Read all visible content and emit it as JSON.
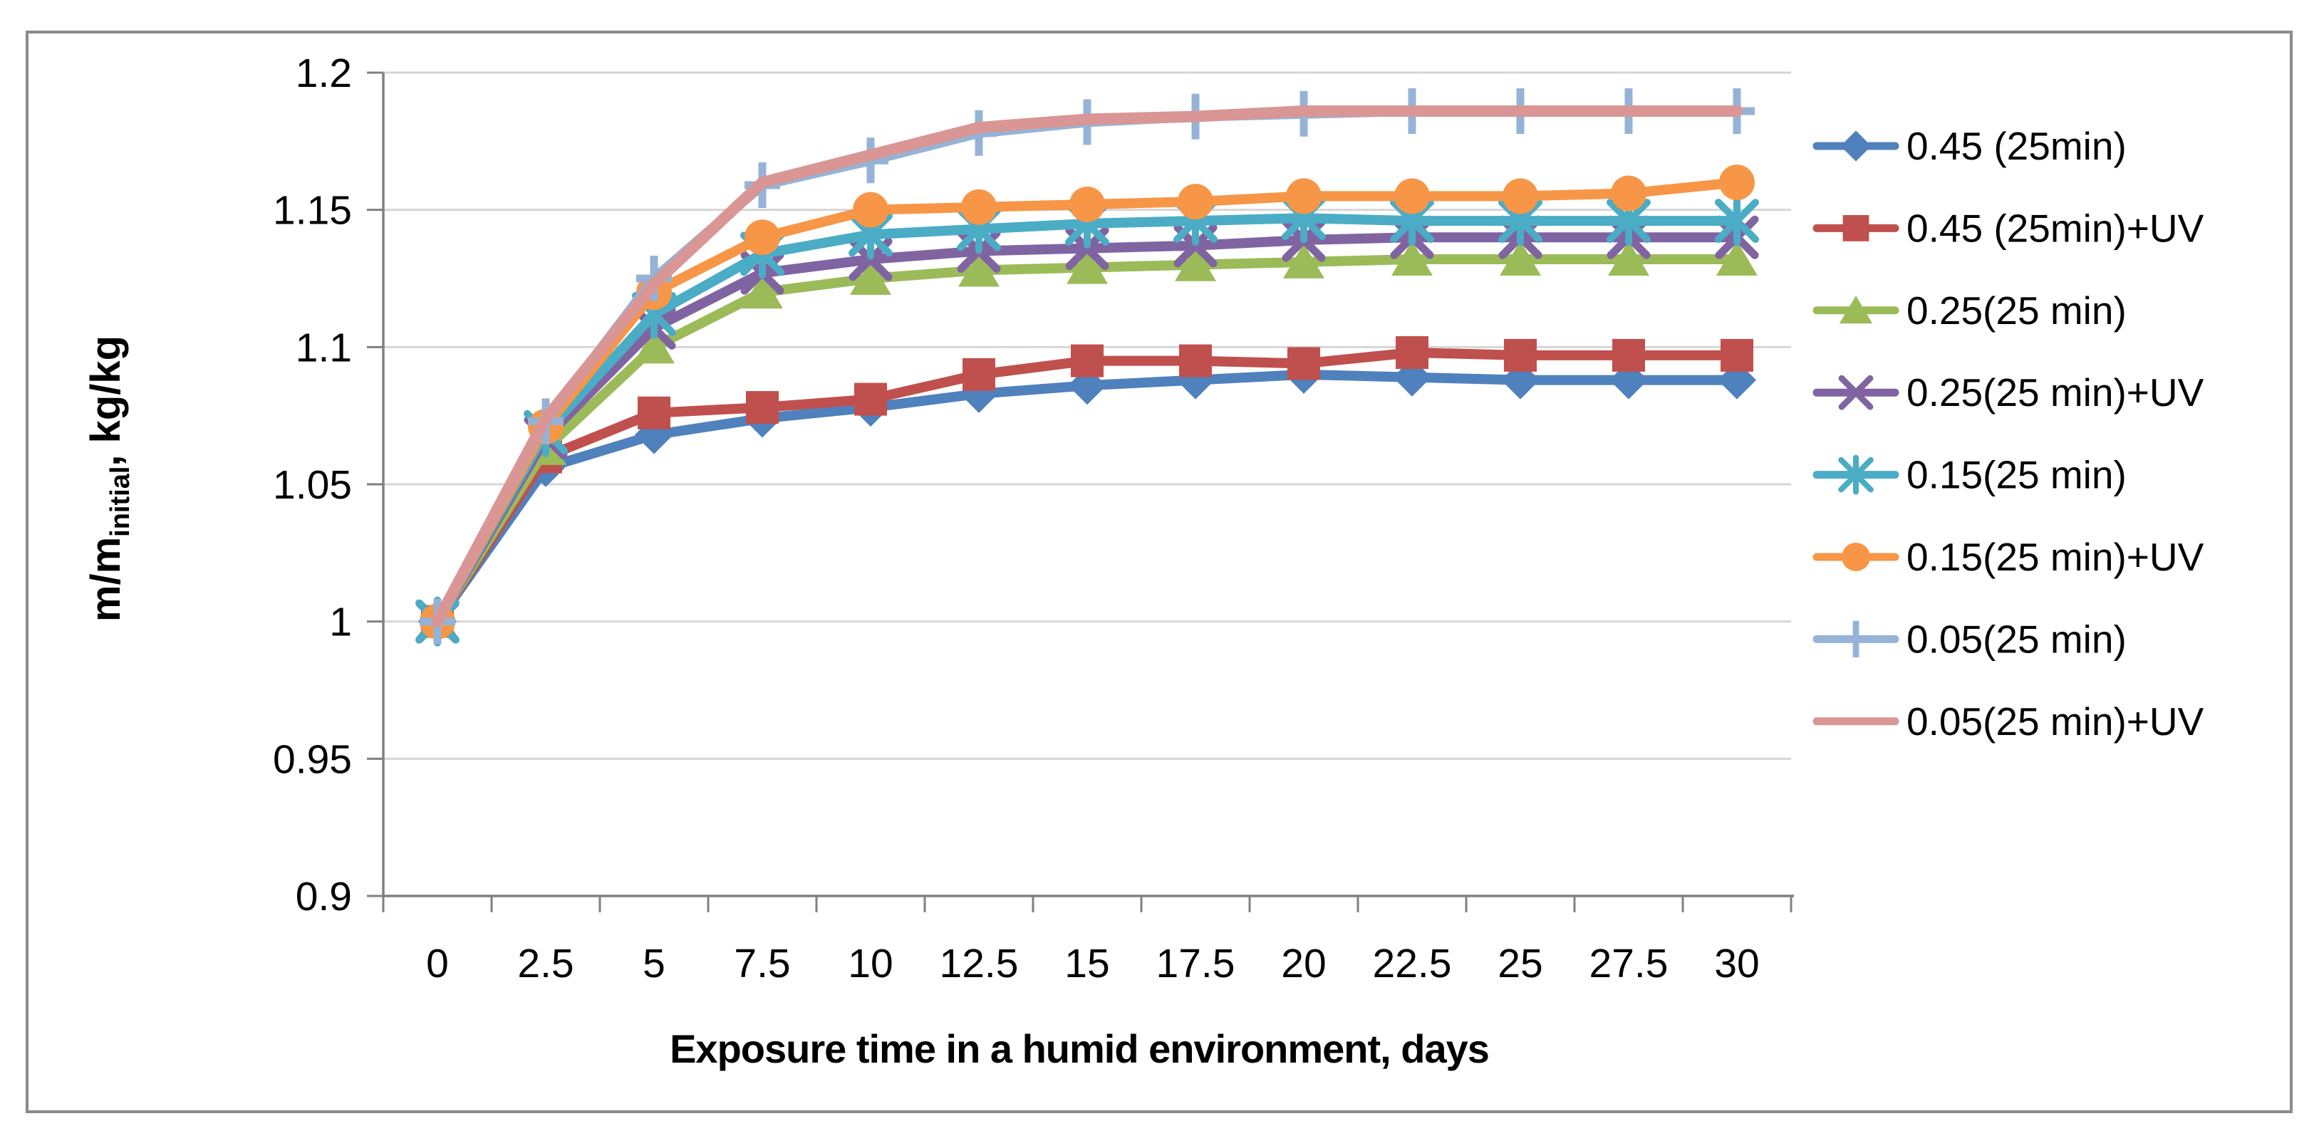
{
  "figure": {
    "background": "#ffffff",
    "border_color": "#8a8a8a"
  },
  "chart_data": {
    "type": "line",
    "title": "",
    "xlabel": "Exposure time in a humid environment, days",
    "ylabel": {
      "main": "m/m",
      "subscript": "initial",
      "suffix": ", kg/kg"
    },
    "x": [
      0,
      2.5,
      5,
      7.5,
      10,
      12.5,
      15,
      17.5,
      20,
      22.5,
      25,
      27.5,
      30
    ],
    "x_tick_labels": [
      "0",
      "2.5",
      "5",
      "7.5",
      "10",
      "12.5",
      "15",
      "17.5",
      "20",
      "22.5",
      "25",
      "27.5",
      "30"
    ],
    "y_ticks": [
      0.9,
      0.95,
      1,
      1.05,
      1.1,
      1.15,
      1.2
    ],
    "y_tick_labels": [
      "0.9",
      "0.95",
      "1",
      "1.05",
      "1.1",
      "1.15",
      "1.2"
    ],
    "xlim": [
      0,
      30
    ],
    "ylim": [
      0.9,
      1.2
    ],
    "grid": "horizontal",
    "legend_position": "right",
    "series": [
      {
        "name": "0.45 (25min)",
        "color": "#4F81BD",
        "marker": "diamond",
        "values": [
          1,
          1.056,
          1.068,
          1.074,
          1.078,
          1.083,
          1.086,
          1.088,
          1.09,
          1.089,
          1.088,
          1.088,
          1.088
        ]
      },
      {
        "name": "0.45 (25min)+UV",
        "color": "#C0504D",
        "marker": "square",
        "values": [
          1,
          1.06,
          1.076,
          1.078,
          1.081,
          1.09,
          1.095,
          1.095,
          1.094,
          1.098,
          1.097,
          1.097,
          1.097
        ]
      },
      {
        "name": "0.25(25 min)",
        "color": "#9BBB59",
        "marker": "triangle",
        "values": [
          1,
          1.063,
          1.1,
          1.12,
          1.125,
          1.128,
          1.129,
          1.13,
          1.131,
          1.132,
          1.132,
          1.132,
          1.132
        ]
      },
      {
        "name": "0.25(25 min)+UV",
        "color": "#8064A2",
        "marker": "x",
        "values": [
          1,
          1.067,
          1.107,
          1.127,
          1.132,
          1.135,
          1.136,
          1.137,
          1.139,
          1.14,
          1.14,
          1.14,
          1.14
        ]
      },
      {
        "name": "0.15(25 min)",
        "color": "#4BACC6",
        "marker": "star",
        "values": [
          1,
          1.069,
          1.112,
          1.134,
          1.141,
          1.143,
          1.145,
          1.146,
          1.147,
          1.146,
          1.146,
          1.146,
          1.146
        ]
      },
      {
        "name": "0.15(25 min)+UV",
        "color": "#F79646",
        "marker": "circle",
        "values": [
          1,
          1.071,
          1.12,
          1.14,
          1.15,
          1.151,
          1.152,
          1.153,
          1.155,
          1.155,
          1.155,
          1.156,
          1.16
        ]
      },
      {
        "name": "0.05(25 min)",
        "color": "#95B3D7",
        "marker": "plus",
        "values": [
          1,
          1.073,
          1.125,
          1.159,
          1.168,
          1.178,
          1.182,
          1.184,
          1.185,
          1.186,
          1.186,
          1.186,
          1.186
        ]
      },
      {
        "name": "0.05(25 min)+UV",
        "color": "#D99694",
        "marker": "none",
        "values": [
          1,
          1.074,
          1.123,
          1.16,
          1.17,
          1.18,
          1.183,
          1.184,
          1.186,
          1.186,
          1.186,
          1.186,
          1.186
        ]
      }
    ]
  },
  "colors": {
    "gridline": "#D6D6D6",
    "axis": "#808080",
    "tick_text": "#000000"
  }
}
